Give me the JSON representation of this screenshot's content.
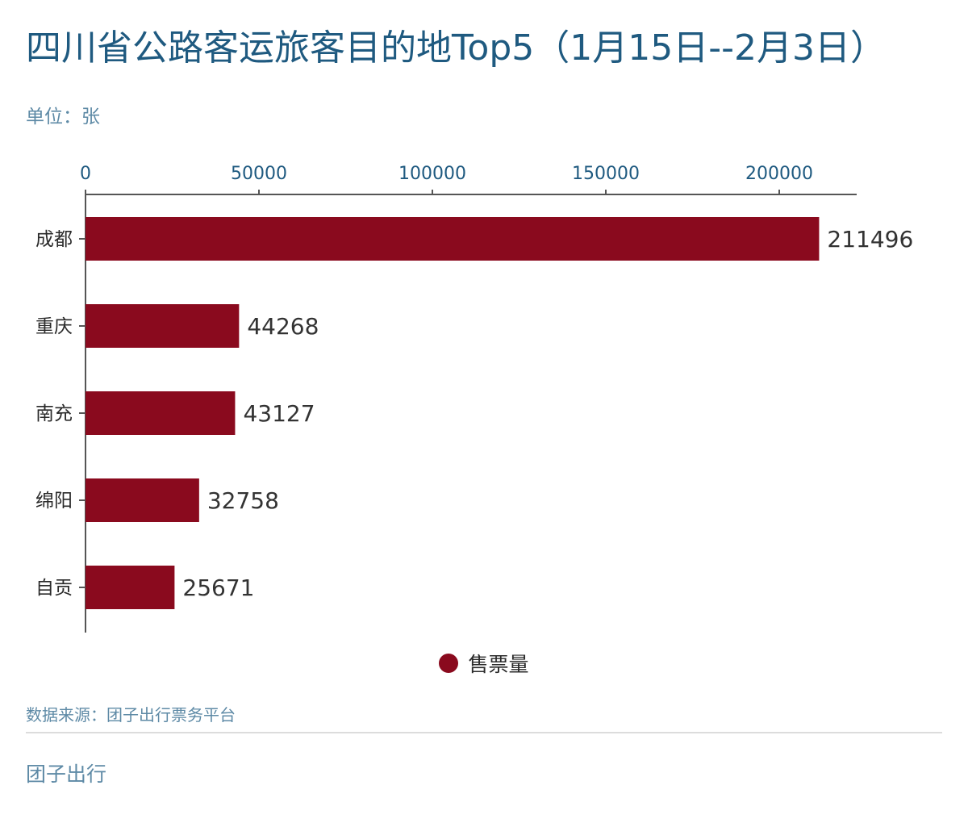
{
  "title": "四川省公路客运旅客目的地Top5（1月15日--2月3日）",
  "unit_label": "单位：张",
  "source": "数据来源：团子出行票务平台",
  "brand": "团子出行",
  "colors": {
    "bar": "#8a0a1e",
    "axis": "#555555",
    "title": "#1f5a80",
    "muted": "#5e8aa6"
  },
  "legend": {
    "label": "售票量",
    "color": "#8a0a1e",
    "placement": "bottom-center"
  },
  "chart_data": {
    "type": "bar",
    "orientation": "horizontal",
    "categories": [
      "成都",
      "重庆",
      "南充",
      "绵阳",
      "自贡"
    ],
    "series": [
      {
        "name": "售票量",
        "values": [
          211496,
          44268,
          43127,
          32758,
          25671
        ]
      }
    ],
    "x_ticks": [
      0,
      50000,
      100000,
      150000,
      200000
    ],
    "xlim": [
      0,
      222000
    ],
    "x_axis_position": "top",
    "grid": false,
    "data_labels": true
  }
}
